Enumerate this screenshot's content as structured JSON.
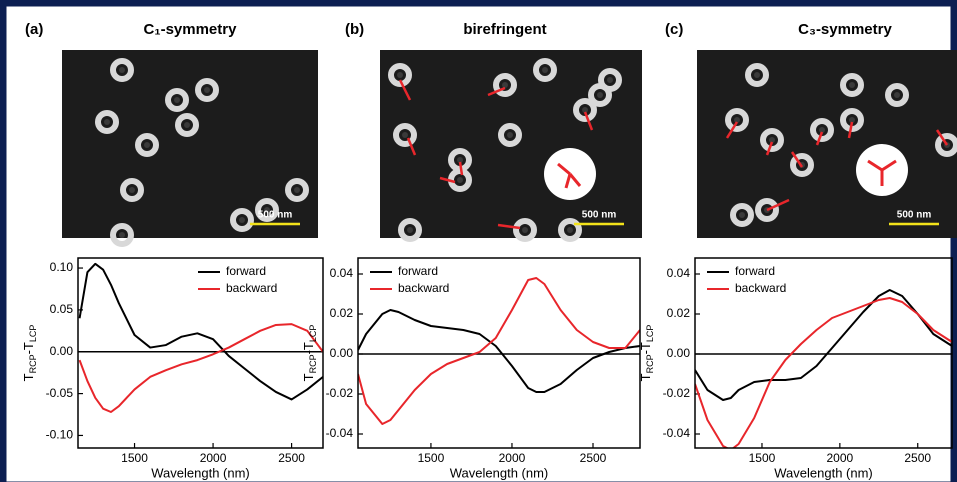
{
  "chart_data": [
    {
      "type": "line",
      "panel_label": "(a)",
      "title": "C₁-symmetry",
      "scale_bar": "500 nm",
      "xlabel": "Wavelength (nm)",
      "ylabel": [
        "T",
        "RCP",
        "-T",
        "LCP"
      ],
      "x": [
        1150,
        1200,
        1250,
        1300,
        1350,
        1400,
        1500,
        1600,
        1700,
        1800,
        1900,
        2000,
        2100,
        2200,
        2300,
        2400,
        2500,
        2600,
        2700
      ],
      "series": [
        {
          "name": "forward",
          "color": "#000000",
          "values": [
            0.04,
            0.095,
            0.105,
            0.098,
            0.08,
            0.058,
            0.02,
            0.005,
            0.008,
            0.018,
            0.022,
            0.015,
            -0.005,
            -0.02,
            -0.035,
            -0.048,
            -0.057,
            -0.045,
            -0.03
          ]
        },
        {
          "name": "backward",
          "color": "#e8262b",
          "values": [
            -0.01,
            -0.035,
            -0.055,
            -0.068,
            -0.072,
            -0.065,
            -0.045,
            -0.03,
            -0.022,
            -0.015,
            -0.01,
            -0.003,
            0.005,
            0.015,
            0.025,
            0.032,
            0.033,
            0.025,
            0.0
          ]
        }
      ],
      "xlim": [
        1140,
        2700
      ],
      "xticks": [
        1500,
        2000,
        2500
      ],
      "ylim": [
        -0.115,
        0.112
      ],
      "yticks": [
        {
          "value": 0.1,
          "label": "0.10"
        },
        0.05,
        {
          "value": 0,
          "label": "0.00"
        },
        -0.05,
        {
          "value": -0.1,
          "label": "-0.10"
        }
      ],
      "zero_line": true,
      "legend": "upper right"
    },
    {
      "type": "line",
      "panel_label": "(b)",
      "title": "birefringent",
      "scale_bar": "500 nm",
      "xlabel": "Wavelength (nm)",
      "ylabel": [
        "T",
        "RCP",
        "-T",
        "LCP"
      ],
      "x": [
        1050,
        1100,
        1200,
        1250,
        1300,
        1400,
        1500,
        1600,
        1700,
        1800,
        1900,
        2000,
        2100,
        2150,
        2200,
        2300,
        2400,
        2500,
        2600,
        2700,
        2790
      ],
      "series": [
        {
          "name": "forward",
          "color": "#000000",
          "values": [
            0.002,
            0.01,
            0.02,
            0.022,
            0.021,
            0.017,
            0.014,
            0.013,
            0.012,
            0.01,
            0.004,
            -0.006,
            -0.017,
            -0.019,
            -0.019,
            -0.015,
            -0.008,
            -0.002,
            0.001,
            0.003,
            0.004
          ]
        },
        {
          "name": "backward",
          "color": "#e8262b",
          "values": [
            -0.01,
            -0.025,
            -0.035,
            -0.033,
            -0.028,
            -0.018,
            -0.01,
            -0.005,
            -0.002,
            0.001,
            0.008,
            0.022,
            0.037,
            0.038,
            0.035,
            0.022,
            0.012,
            0.006,
            0.003,
            0.003,
            0.012
          ]
        }
      ],
      "xlim": [
        1050,
        2790
      ],
      "xticks": [
        1500,
        2000,
        2500
      ],
      "ylim": [
        -0.047,
        0.048
      ],
      "yticks": [
        0.04,
        0.02,
        {
          "value": 0,
          "label": "0.00"
        },
        -0.02,
        -0.04
      ],
      "zero_line": true,
      "legend": "upper left"
    },
    {
      "type": "line",
      "panel_label": "(c)",
      "title": "C₃-symmetry",
      "scale_bar": "500 nm",
      "xlabel": "Wavelength (nm)",
      "ylabel": [
        "T",
        "RCP",
        "-T",
        "LCP"
      ],
      "x": [
        1070,
        1150,
        1250,
        1300,
        1350,
        1450,
        1550,
        1650,
        1750,
        1850,
        1950,
        2050,
        2150,
        2250,
        2320,
        2400,
        2500,
        2600,
        2720
      ],
      "series": [
        {
          "name": "forward",
          "color": "#000000",
          "values": [
            -0.008,
            -0.018,
            -0.023,
            -0.022,
            -0.018,
            -0.014,
            -0.013,
            -0.013,
            -0.012,
            -0.006,
            0.003,
            0.012,
            0.021,
            0.029,
            0.032,
            0.029,
            0.02,
            0.01,
            0.004
          ]
        },
        {
          "name": "backward",
          "color": "#e8262b",
          "values": [
            -0.015,
            -0.033,
            -0.046,
            -0.048,
            -0.045,
            -0.032,
            -0.014,
            -0.003,
            0.005,
            0.012,
            0.018,
            0.021,
            0.024,
            0.027,
            0.028,
            0.026,
            0.02,
            0.012,
            0.006
          ]
        }
      ],
      "xlim": [
        1070,
        2720
      ],
      "xticks": [
        1500,
        2000,
        2500
      ],
      "ylim": [
        -0.047,
        0.048
      ],
      "yticks": [
        0.04,
        0.02,
        {
          "value": 0,
          "label": "0.00"
        },
        -0.02,
        -0.04
      ],
      "zero_line": true,
      "legend": "upper left"
    }
  ]
}
